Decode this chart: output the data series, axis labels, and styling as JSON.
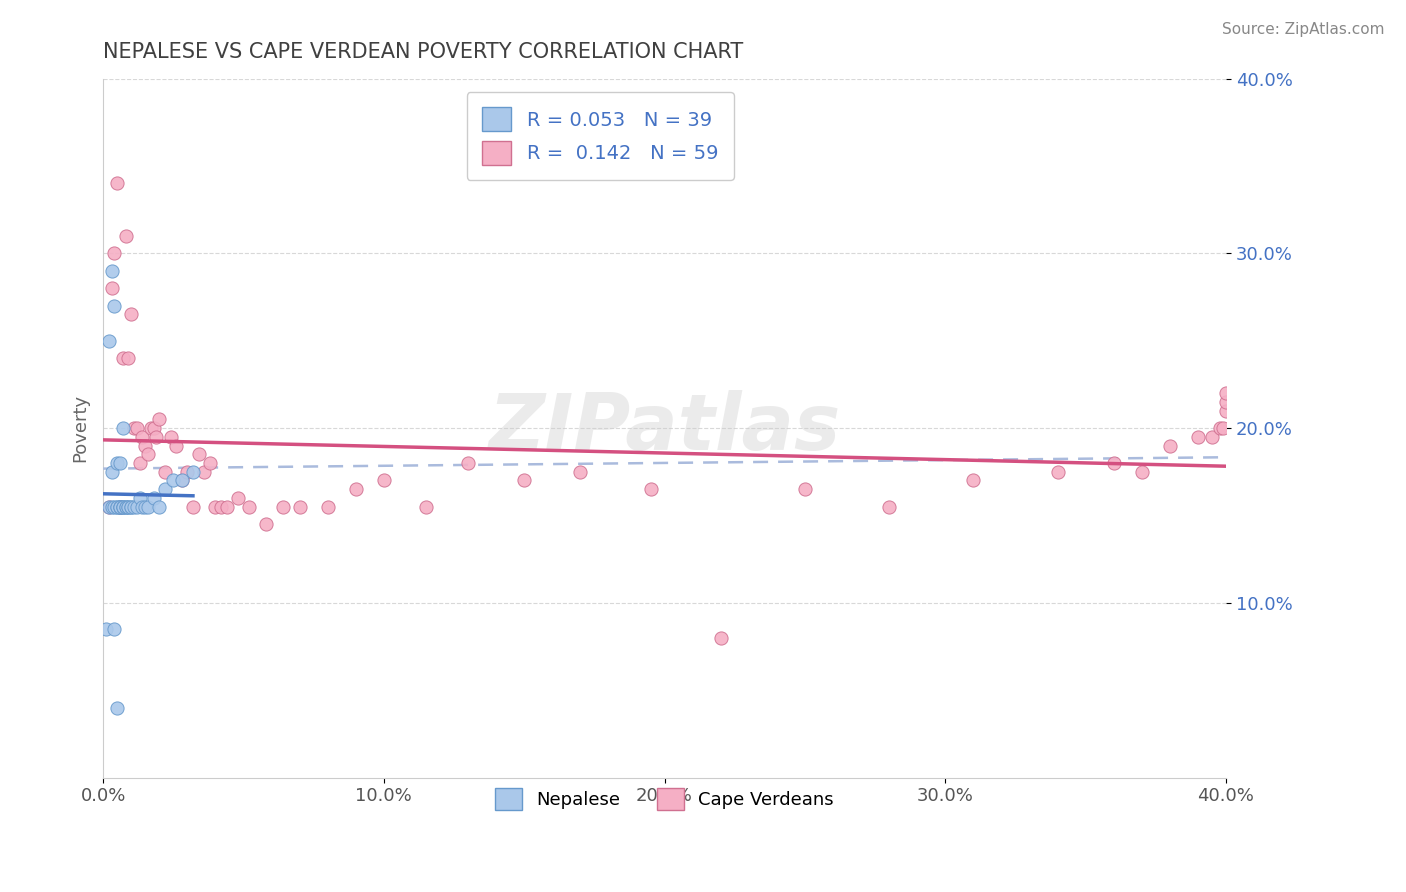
{
  "title": "NEPALESE VS CAPE VERDEAN POVERTY CORRELATION CHART",
  "source": "Source: ZipAtlas.com",
  "ylabel": "Poverty",
  "xlim": [
    0.0,
    0.4
  ],
  "ylim": [
    0.0,
    0.4
  ],
  "nepalese_R": 0.053,
  "nepalese_N": 39,
  "capeverdean_R": 0.142,
  "capeverdean_N": 59,
  "nepalese_color": "#aac8ea",
  "capeverdean_color": "#f5afc5",
  "nepalese_edge_color": "#6699cc",
  "capeverdean_edge_color": "#d07090",
  "nepalese_line_color": "#4472c4",
  "capeverdean_line_color": "#d45080",
  "dashed_line_color": "#aabbdd",
  "legend_text_color": "#4472c4",
  "title_color": "#404040",
  "grid_color": "#d8d8d8",
  "background_color": "#ffffff",
  "nepalese_x": [
    0.001,
    0.002,
    0.002,
    0.003,
    0.003,
    0.003,
    0.004,
    0.004,
    0.004,
    0.005,
    0.005,
    0.005,
    0.005,
    0.006,
    0.006,
    0.006,
    0.006,
    0.007,
    0.007,
    0.007,
    0.007,
    0.008,
    0.008,
    0.009,
    0.009,
    0.01,
    0.01,
    0.011,
    0.012,
    0.013,
    0.014,
    0.015,
    0.016,
    0.018,
    0.02,
    0.022,
    0.025,
    0.028,
    0.032
  ],
  "nepalese_y": [
    0.085,
    0.25,
    0.155,
    0.29,
    0.155,
    0.175,
    0.27,
    0.155,
    0.085,
    0.18,
    0.155,
    0.155,
    0.04,
    0.155,
    0.18,
    0.155,
    0.155,
    0.2,
    0.155,
    0.155,
    0.155,
    0.155,
    0.155,
    0.155,
    0.155,
    0.155,
    0.155,
    0.155,
    0.155,
    0.16,
    0.155,
    0.155,
    0.155,
    0.16,
    0.155,
    0.165,
    0.17,
    0.17,
    0.175
  ],
  "capeverdean_x": [
    0.002,
    0.003,
    0.004,
    0.005,
    0.006,
    0.007,
    0.008,
    0.009,
    0.01,
    0.011,
    0.012,
    0.013,
    0.014,
    0.015,
    0.016,
    0.017,
    0.018,
    0.019,
    0.02,
    0.022,
    0.024,
    0.026,
    0.028,
    0.03,
    0.032,
    0.034,
    0.036,
    0.038,
    0.04,
    0.042,
    0.044,
    0.048,
    0.052,
    0.058,
    0.064,
    0.07,
    0.08,
    0.09,
    0.1,
    0.115,
    0.13,
    0.15,
    0.17,
    0.195,
    0.22,
    0.25,
    0.28,
    0.31,
    0.34,
    0.36,
    0.37,
    0.38,
    0.39,
    0.395,
    0.398,
    0.399,
    0.4,
    0.4,
    0.4
  ],
  "capeverdean_y": [
    0.155,
    0.28,
    0.3,
    0.34,
    0.155,
    0.24,
    0.31,
    0.24,
    0.265,
    0.2,
    0.2,
    0.18,
    0.195,
    0.19,
    0.185,
    0.2,
    0.2,
    0.195,
    0.205,
    0.175,
    0.195,
    0.19,
    0.17,
    0.175,
    0.155,
    0.185,
    0.175,
    0.18,
    0.155,
    0.155,
    0.155,
    0.16,
    0.155,
    0.145,
    0.155,
    0.155,
    0.155,
    0.165,
    0.17,
    0.155,
    0.18,
    0.17,
    0.175,
    0.165,
    0.08,
    0.165,
    0.155,
    0.17,
    0.175,
    0.18,
    0.175,
    0.19,
    0.195,
    0.195,
    0.2,
    0.2,
    0.21,
    0.215,
    0.22
  ]
}
